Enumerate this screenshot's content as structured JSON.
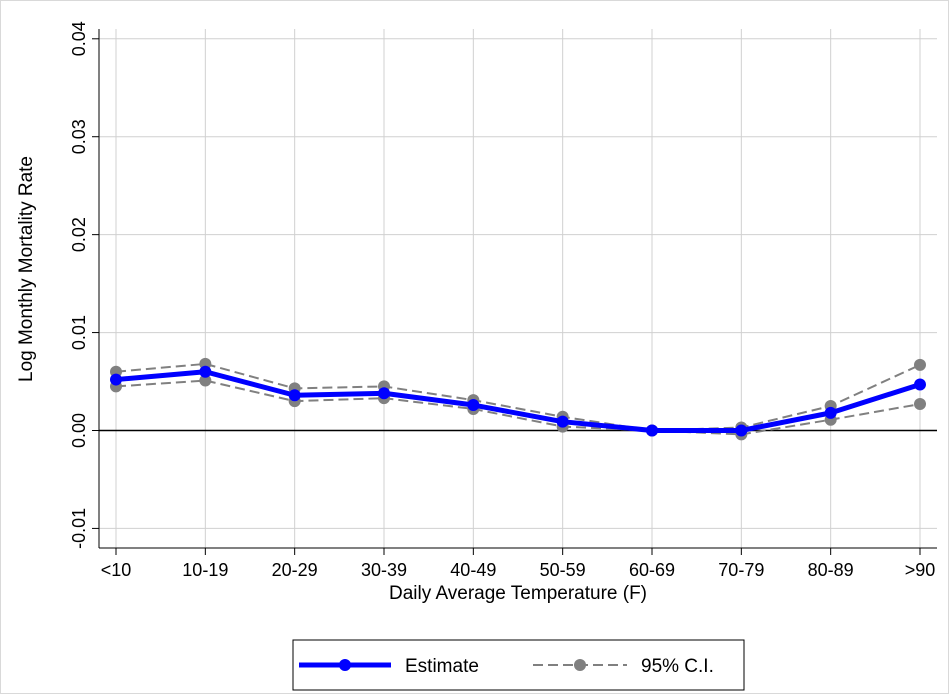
{
  "chart_data": {
    "type": "line",
    "title": "",
    "xlabel": "Daily Average Temperature (F)",
    "ylabel": "Log Monthly Mortality Rate",
    "categories": [
      "<10",
      "10-19",
      "20-29",
      "30-39",
      "40-49",
      "50-59",
      "60-69",
      "70-79",
      "80-89",
      ">90"
    ],
    "ylim": [
      -0.012,
      0.041
    ],
    "yticks": [
      -0.01,
      0.0,
      0.01,
      0.02,
      0.03,
      0.04
    ],
    "ytick_labels": [
      "-0.01",
      "0.00",
      "0.01",
      "0.02",
      "0.03",
      "0.04"
    ],
    "grid": true,
    "reference_line_y": 0.0,
    "legend_position": "bottom",
    "series": [
      {
        "name": "Estimate",
        "values": [
          0.0052,
          0.006,
          0.0036,
          0.0038,
          0.0026,
          0.0009,
          0.0,
          0.0,
          0.0018,
          0.0047
        ],
        "color": "#0000ff",
        "style": "solid"
      },
      {
        "name": "95% C.I.",
        "values": [
          0.006,
          0.0068,
          0.0043,
          0.0045,
          0.0031,
          0.0014,
          0.0,
          0.0003,
          0.0025,
          0.0067
        ],
        "color": "#808080",
        "style": "dashed"
      },
      {
        "name": "",
        "values": [
          0.0045,
          0.0051,
          0.003,
          0.0033,
          0.0022,
          0.0004,
          0.0,
          -0.0004,
          0.0011,
          0.0027
        ],
        "color": "#808080",
        "style": "dashed"
      }
    ]
  },
  "legend": {
    "items": [
      {
        "label": "Estimate",
        "color": "#0000ff",
        "style": "solid"
      },
      {
        "label": "95% C.I.",
        "color": "#808080",
        "style": "dashed"
      }
    ]
  }
}
